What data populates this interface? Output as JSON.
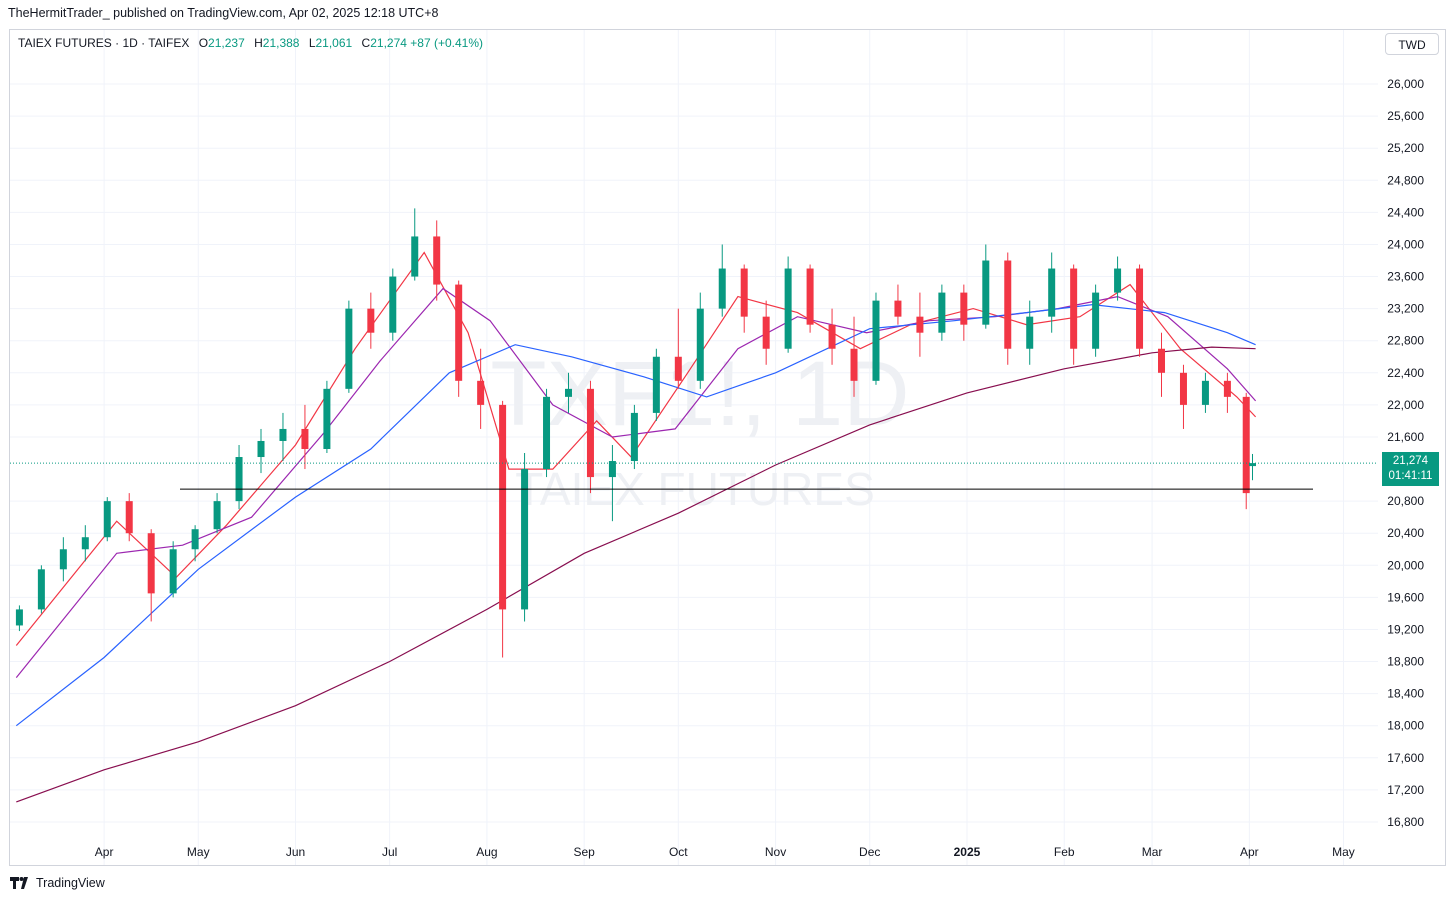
{
  "header": {
    "published_line": "TheHermitTrader_ published on TradingView.com, Apr 02, 2025 12:18 UTC+8"
  },
  "legend": {
    "symbol": "TAIEX FUTURES · 1D · TAIFEX",
    "open_label": "O",
    "open": "21,237",
    "high_label": "H",
    "high": "21,388",
    "low_label": "L",
    "low": "21,061",
    "close_label": "C",
    "close": "21,274",
    "change": "+87 (+0.41%)"
  },
  "currency_badge": "TWD",
  "price_tag": {
    "price": "21,274",
    "countdown": "01:41:11"
  },
  "watermark": {
    "ticker": "TXF1!, 1D",
    "name": "TAIEX FUTURES"
  },
  "footer": {
    "brand": "TradingView"
  },
  "colors": {
    "up": "#089981",
    "down": "#f23645",
    "ma_short": "#f23645",
    "ma_mid": "#9c27b0",
    "ma_blue": "#2962ff",
    "ma_long": "#880e4f",
    "hline": "#000000",
    "grid": "#f0f3fa"
  },
  "chart_data": {
    "type": "candlestick",
    "x_axis_labels": [
      "Apr",
      "May",
      "Jun",
      "Jul",
      "Aug",
      "Sep",
      "Oct",
      "Nov",
      "Dec",
      "2025",
      "Feb",
      "Mar",
      "Apr",
      "May"
    ],
    "y_axis_labels": [
      "26,000",
      "25,600",
      "25,200",
      "24,800",
      "24,400",
      "24,000",
      "23,600",
      "23,200",
      "22,800",
      "22,400",
      "22,000",
      "21,600",
      "20,800",
      "20,400",
      "20,000",
      "19,600",
      "19,200",
      "18,800",
      "18,400",
      "18,000",
      "17,600",
      "17,200",
      "16,800"
    ],
    "ylim": [
      16600,
      26300
    ],
    "horizontal_line_price": 20950,
    "last_price": 21274,
    "candles": [
      {
        "x": "2024-03-05",
        "o": 19250,
        "h": 19500,
        "l": 19180,
        "c": 19450
      },
      {
        "x": "2024-03-12",
        "o": 19450,
        "h": 20000,
        "l": 19400,
        "c": 19950
      },
      {
        "x": "2024-03-19",
        "o": 19950,
        "h": 20350,
        "l": 19800,
        "c": 20200
      },
      {
        "x": "2024-03-26",
        "o": 20200,
        "h": 20500,
        "l": 20050,
        "c": 20350
      },
      {
        "x": "2024-04-02",
        "o": 20350,
        "h": 20850,
        "l": 20300,
        "c": 20800
      },
      {
        "x": "2024-04-09",
        "o": 20800,
        "h": 20900,
        "l": 20300,
        "c": 20400
      },
      {
        "x": "2024-04-16",
        "o": 20400,
        "h": 20450,
        "l": 19300,
        "c": 19650
      },
      {
        "x": "2024-04-23",
        "o": 19650,
        "h": 20300,
        "l": 19600,
        "c": 20200
      },
      {
        "x": "2024-04-30",
        "o": 20200,
        "h": 20500,
        "l": 20050,
        "c": 20450
      },
      {
        "x": "2024-05-07",
        "o": 20450,
        "h": 20900,
        "l": 20400,
        "c": 20800
      },
      {
        "x": "2024-05-14",
        "o": 20800,
        "h": 21500,
        "l": 20700,
        "c": 21350
      },
      {
        "x": "2024-05-21",
        "o": 21350,
        "h": 21700,
        "l": 21150,
        "c": 21550
      },
      {
        "x": "2024-05-28",
        "o": 21550,
        "h": 21900,
        "l": 21300,
        "c": 21700
      },
      {
        "x": "2024-06-04",
        "o": 21700,
        "h": 22000,
        "l": 21200,
        "c": 21450
      },
      {
        "x": "2024-06-11",
        "o": 21450,
        "h": 22300,
        "l": 21400,
        "c": 22200
      },
      {
        "x": "2024-06-18",
        "o": 22200,
        "h": 23300,
        "l": 22150,
        "c": 23200
      },
      {
        "x": "2024-06-25",
        "o": 23200,
        "h": 23400,
        "l": 22700,
        "c": 22900
      },
      {
        "x": "2024-07-02",
        "o": 22900,
        "h": 23700,
        "l": 22800,
        "c": 23600
      },
      {
        "x": "2024-07-09",
        "o": 23600,
        "h": 24450,
        "l": 23550,
        "c": 24100
      },
      {
        "x": "2024-07-16",
        "o": 24100,
        "h": 24300,
        "l": 23300,
        "c": 23500
      },
      {
        "x": "2024-07-23",
        "o": 23500,
        "h": 23550,
        "l": 22100,
        "c": 22300
      },
      {
        "x": "2024-07-30",
        "o": 22300,
        "h": 22700,
        "l": 21700,
        "c": 22000
      },
      {
        "x": "2024-08-06",
        "o": 22000,
        "h": 22050,
        "l": 18850,
        "c": 19450
      },
      {
        "x": "2024-08-13",
        "o": 19450,
        "h": 21400,
        "l": 19300,
        "c": 21200
      },
      {
        "x": "2024-08-20",
        "o": 21200,
        "h": 22200,
        "l": 21100,
        "c": 22100
      },
      {
        "x": "2024-08-27",
        "o": 22100,
        "h": 22400,
        "l": 21900,
        "c": 22200
      },
      {
        "x": "2024-09-03",
        "o": 22200,
        "h": 22300,
        "l": 20900,
        "c": 21100
      },
      {
        "x": "2024-09-10",
        "o": 21100,
        "h": 21500,
        "l": 20550,
        "c": 21300
      },
      {
        "x": "2024-09-17",
        "o": 21300,
        "h": 22000,
        "l": 21200,
        "c": 21900
      },
      {
        "x": "2024-09-24",
        "o": 21900,
        "h": 22700,
        "l": 21800,
        "c": 22600
      },
      {
        "x": "2024-10-01",
        "o": 22600,
        "h": 23200,
        "l": 22200,
        "c": 22300
      },
      {
        "x": "2024-10-08",
        "o": 22300,
        "h": 23400,
        "l": 22200,
        "c": 23200
      },
      {
        "x": "2024-10-15",
        "o": 23200,
        "h": 24000,
        "l": 23100,
        "c": 23700
      },
      {
        "x": "2024-10-22",
        "o": 23700,
        "h": 23750,
        "l": 22900,
        "c": 23100
      },
      {
        "x": "2024-10-29",
        "o": 23100,
        "h": 23300,
        "l": 22500,
        "c": 22700
      },
      {
        "x": "2024-11-05",
        "o": 22700,
        "h": 23850,
        "l": 22650,
        "c": 23700
      },
      {
        "x": "2024-11-12",
        "o": 23700,
        "h": 23750,
        "l": 22900,
        "c": 23000
      },
      {
        "x": "2024-11-19",
        "o": 23000,
        "h": 23200,
        "l": 22500,
        "c": 22700
      },
      {
        "x": "2024-11-26",
        "o": 22700,
        "h": 23100,
        "l": 22100,
        "c": 22300
      },
      {
        "x": "2024-12-03",
        "o": 22300,
        "h": 23400,
        "l": 22250,
        "c": 23300
      },
      {
        "x": "2024-12-10",
        "o": 23300,
        "h": 23500,
        "l": 23000,
        "c": 23100
      },
      {
        "x": "2024-12-17",
        "o": 23100,
        "h": 23400,
        "l": 22600,
        "c": 22900
      },
      {
        "x": "2024-12-24",
        "o": 22900,
        "h": 23500,
        "l": 22800,
        "c": 23400
      },
      {
        "x": "2024-12-31",
        "o": 23400,
        "h": 23500,
        "l": 22800,
        "c": 23000
      },
      {
        "x": "2025-01-07",
        "o": 23000,
        "h": 24000,
        "l": 22950,
        "c": 23800
      },
      {
        "x": "2025-01-14",
        "o": 23800,
        "h": 23900,
        "l": 22500,
        "c": 22700
      },
      {
        "x": "2025-01-21",
        "o": 22700,
        "h": 23300,
        "l": 22500,
        "c": 23100
      },
      {
        "x": "2025-01-28",
        "o": 23100,
        "h": 23900,
        "l": 22900,
        "c": 23700
      },
      {
        "x": "2025-02-04",
        "o": 23700,
        "h": 23750,
        "l": 22500,
        "c": 22700
      },
      {
        "x": "2025-02-11",
        "o": 22700,
        "h": 23500,
        "l": 22600,
        "c": 23400
      },
      {
        "x": "2025-02-18",
        "o": 23400,
        "h": 23850,
        "l": 23300,
        "c": 23700
      },
      {
        "x": "2025-02-25",
        "o": 23700,
        "h": 23750,
        "l": 22600,
        "c": 22700
      },
      {
        "x": "2025-03-04",
        "o": 22700,
        "h": 22900,
        "l": 22100,
        "c": 22400
      },
      {
        "x": "2025-03-11",
        "o": 22400,
        "h": 22500,
        "l": 21700,
        "c": 22000
      },
      {
        "x": "2025-03-18",
        "o": 22000,
        "h": 22400,
        "l": 21900,
        "c": 22300
      },
      {
        "x": "2025-03-25",
        "o": 22300,
        "h": 22400,
        "l": 21900,
        "c": 22100
      },
      {
        "x": "2025-03-31",
        "o": 22100,
        "h": 22150,
        "l": 20700,
        "c": 20900
      },
      {
        "x": "2025-04-02",
        "o": 21237,
        "h": 21388,
        "l": 21061,
        "c": 21274
      }
    ],
    "moving_averages": [
      {
        "color": "#f23645",
        "points": [
          [
            "2024-03-04",
            19000
          ],
          [
            "2024-04-05",
            20550
          ],
          [
            "2024-04-24",
            19850
          ],
          [
            "2024-05-10",
            20500
          ],
          [
            "2024-06-01",
            21500
          ],
          [
            "2024-06-20",
            22700
          ],
          [
            "2024-07-12",
            23900
          ],
          [
            "2024-07-26",
            22900
          ],
          [
            "2024-08-08",
            21200
          ],
          [
            "2024-08-22",
            21200
          ],
          [
            "2024-09-05",
            21800
          ],
          [
            "2024-09-16",
            21350
          ],
          [
            "2024-10-04",
            22400
          ],
          [
            "2024-10-20",
            23350
          ],
          [
            "2024-11-08",
            23150
          ],
          [
            "2024-11-28",
            22700
          ],
          [
            "2024-12-14",
            23000
          ],
          [
            "2025-01-03",
            23200
          ],
          [
            "2025-01-20",
            23000
          ],
          [
            "2025-02-06",
            23100
          ],
          [
            "2025-02-22",
            23500
          ],
          [
            "2025-03-10",
            22700
          ],
          [
            "2025-03-28",
            22100
          ],
          [
            "2025-04-03",
            21850
          ]
        ]
      },
      {
        "color": "#9c27b0",
        "points": [
          [
            "2024-03-04",
            18600
          ],
          [
            "2024-04-05",
            20150
          ],
          [
            "2024-04-26",
            20250
          ],
          [
            "2024-05-18",
            20600
          ],
          [
            "2024-06-10",
            21650
          ],
          [
            "2024-06-28",
            22550
          ],
          [
            "2024-07-18",
            23450
          ],
          [
            "2024-08-02",
            23050
          ],
          [
            "2024-08-22",
            22000
          ],
          [
            "2024-09-10",
            21600
          ],
          [
            "2024-09-30",
            21700
          ],
          [
            "2024-10-20",
            22700
          ],
          [
            "2024-11-08",
            23100
          ],
          [
            "2024-11-30",
            22900
          ],
          [
            "2024-12-20",
            23050
          ],
          [
            "2025-01-10",
            23100
          ],
          [
            "2025-01-30",
            23200
          ],
          [
            "2025-02-18",
            23350
          ],
          [
            "2025-03-06",
            23100
          ],
          [
            "2025-03-25",
            22450
          ],
          [
            "2025-04-03",
            22050
          ]
        ]
      },
      {
        "color": "#2962ff",
        "points": [
          [
            "2024-03-04",
            18000
          ],
          [
            "2024-04-01",
            18850
          ],
          [
            "2024-05-01",
            19950
          ],
          [
            "2024-06-01",
            20850
          ],
          [
            "2024-06-25",
            21450
          ],
          [
            "2024-07-20",
            22400
          ],
          [
            "2024-08-10",
            22750
          ],
          [
            "2024-08-28",
            22600
          ],
          [
            "2024-09-20",
            22350
          ],
          [
            "2024-10-10",
            22100
          ],
          [
            "2024-11-01",
            22400
          ],
          [
            "2024-12-01",
            22950
          ],
          [
            "2024-12-28",
            23050
          ],
          [
            "2025-01-20",
            23150
          ],
          [
            "2025-02-10",
            23250
          ],
          [
            "2025-03-05",
            23150
          ],
          [
            "2025-03-25",
            22900
          ],
          [
            "2025-04-03",
            22750
          ]
        ]
      },
      {
        "color": "#880e4f",
        "points": [
          [
            "2024-03-04",
            17050
          ],
          [
            "2024-04-01",
            17450
          ],
          [
            "2024-05-01",
            17800
          ],
          [
            "2024-06-01",
            18250
          ],
          [
            "2024-07-01",
            18800
          ],
          [
            "2024-08-01",
            19450
          ],
          [
            "2024-09-01",
            20150
          ],
          [
            "2024-10-01",
            20650
          ],
          [
            "2024-11-01",
            21250
          ],
          [
            "2024-12-01",
            21750
          ],
          [
            "2025-01-01",
            22150
          ],
          [
            "2025-02-01",
            22450
          ],
          [
            "2025-03-01",
            22650
          ],
          [
            "2025-03-20",
            22720
          ],
          [
            "2025-04-03",
            22700
          ]
        ]
      }
    ]
  }
}
